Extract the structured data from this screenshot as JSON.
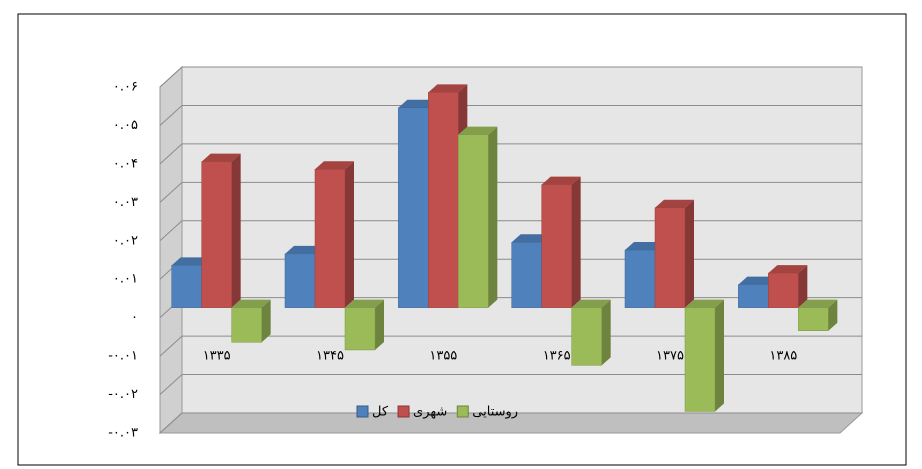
{
  "chart_data": {
    "type": "bar3d",
    "categories": [
      "۱۳۳۵",
      "۱۳۴۵",
      "۱۳۵۵",
      "۱۳۶۵",
      "۱۳۷۵",
      "۱۳۸۵"
    ],
    "series": [
      {
        "name": "کل",
        "color": "#4f81bd",
        "values": [
          0.011,
          0.014,
          0.052,
          0.017,
          0.015,
          0.006
        ]
      },
      {
        "name": "شهری",
        "color": "#c0504d",
        "values": [
          0.038,
          0.036,
          0.056,
          0.032,
          0.026,
          0.009
        ]
      },
      {
        "name": "روستایی",
        "color": "#9bbb59",
        "values": [
          -0.009,
          -0.011,
          0.045,
          -0.015,
          -0.027,
          -0.006
        ]
      }
    ],
    "ylim": [
      -0.03,
      0.06
    ],
    "yticks": [
      {
        "value": 0.06,
        "label": "۰.۰۶"
      },
      {
        "value": 0.05,
        "label": "۰.۰۵"
      },
      {
        "value": 0.04,
        "label": "۰.۰۴"
      },
      {
        "value": 0.03,
        "label": "۰.۰۳"
      },
      {
        "value": 0.02,
        "label": "۰.۰۲"
      },
      {
        "value": 0.01,
        "label": "۰.۰۱"
      },
      {
        "value": 0,
        "label": "۰"
      },
      {
        "value": -0.01,
        "label": "-۰.۰۱"
      },
      {
        "value": -0.02,
        "label": "-۰.۰۲"
      },
      {
        "value": -0.03,
        "label": "-۰.۰۳"
      }
    ],
    "grid": true,
    "legend": "bottom"
  }
}
